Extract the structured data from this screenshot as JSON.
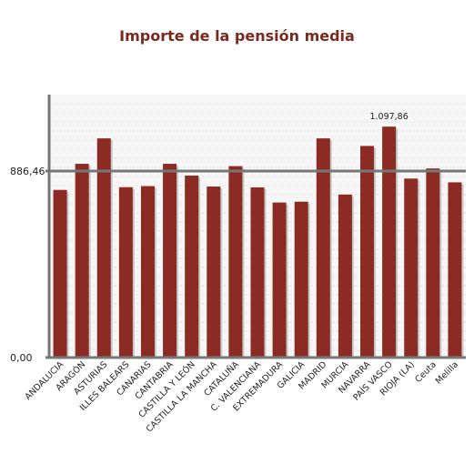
{
  "chart_data": {
    "type": "bar",
    "title": "Importe de la pensión media",
    "xlabel": "",
    "ylabel": "",
    "ylim": [
      0,
      1250
    ],
    "y_tick_labels": [
      "0,00",
      "886,46"
    ],
    "y_ticks": [
      0,
      886.46
    ],
    "reference_line": 886.46,
    "grid": true,
    "legend": "none",
    "bar_color": "#8b2b24",
    "reference_line_color": "#777777",
    "categories": [
      "ANDALUCIA",
      "ARAGÓN",
      "ASTURIAS",
      "ILLES BALEARS",
      "CANARIAS",
      "CANTABRIA",
      "CASTILLA Y LEÓN",
      "CASTILLA LA MANCHA",
      "CATALUÑA",
      "C. VALENCIANA",
      "EXTREMADURA",
      "GALICIA",
      "MADRID",
      "MURCIA",
      "NAVARRA",
      "PAÍS VASCO",
      "RIOJA (LA)",
      "Ceuta",
      "Melilla"
    ],
    "values": [
      797,
      921,
      1042,
      810,
      815,
      921,
      865,
      813,
      910,
      809,
      737,
      741,
      1042,
      775,
      1006,
      1097.86,
      851,
      899,
      833
    ],
    "data_labels": [
      {
        "index": 15,
        "text": "1.097,86"
      }
    ]
  }
}
